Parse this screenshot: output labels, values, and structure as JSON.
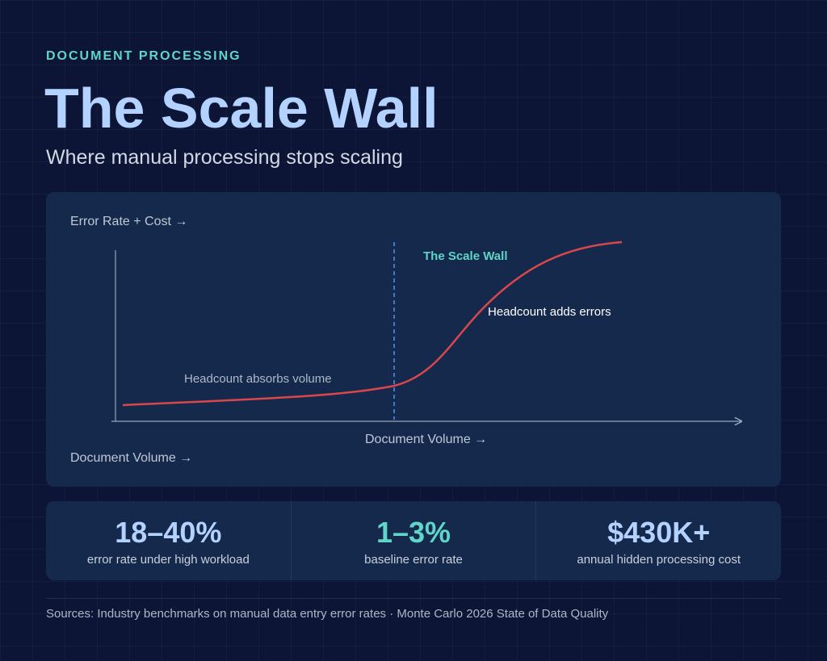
{
  "header": {
    "eyebrow": "DOCUMENT PROCESSING",
    "title": "The Scale Wall",
    "subtitle": "Where manual processing stops scaling"
  },
  "diagram": {
    "y_label": "Error Rate + Cost →",
    "x_label": "Document Volume →",
    "corner_label": "Document Volume →",
    "wall_label": "The Scale Wall",
    "high_label": "Headcount adds errors",
    "low_label": "Headcount absorbs volume"
  },
  "stats": [
    {
      "value": "18–40%",
      "label": "error rate under high workload"
    },
    {
      "value": "1–3%",
      "label": "baseline error rate"
    },
    {
      "value": "$430K+",
      "label": "annual hidden processing cost"
    }
  ],
  "footer": {
    "sources": "Sources: Industry benchmarks on manual data entry error rates · Monte Carlo 2026 State of Data Quality"
  }
}
